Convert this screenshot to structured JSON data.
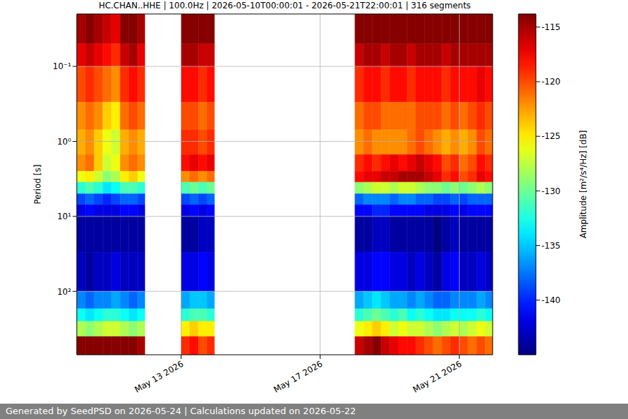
{
  "chart_data": {
    "type": "heatmap",
    "title": "HC.CHAN..HHE | 100.0Hz | 2026-05-10T00:00:01 - 2026-05-21T22:00:01 | 316 segments",
    "y_label": "Period [s]",
    "log": "y",
    "grid": true,
    "footer": "Generated by SeedPSD on 2026-05-24 | Calculations updated on 2026-05-22",
    "xlim": [
      "2026-05-10T00:00:00Z",
      "2026-05-21T23:00:00Z"
    ],
    "xticks": [
      {
        "value": "2026-05-13T00:00:00Z",
        "label": "May 13 2026"
      },
      {
        "value": "2026-05-17T00:00:00Z",
        "label": "May 17 2026"
      },
      {
        "value": "2026-05-21T00:00:00Z",
        "label": "May 21 2026"
      }
    ],
    "ylim": [
      0.02,
      700
    ],
    "yticks": [
      {
        "value": 0.1,
        "label": "10⁻¹"
      },
      {
        "value": 1,
        "label": "10⁰"
      },
      {
        "value": 10,
        "label": "10¹"
      },
      {
        "value": 100,
        "label": "10²"
      }
    ],
    "period_edges": [
      0.02,
      0.05,
      0.1,
      0.3,
      0.7,
      1.5,
      2.5,
      3.5,
      5,
      7,
      10,
      30,
      100,
      170,
      250,
      400,
      700
    ],
    "columns": [
      {
        "start": "2026-05-10T00:00:00Z",
        "end": "2026-05-10T06:00:00Z",
        "values": [
          -115,
          -117,
          -120,
          -122,
          -123,
          -122,
          -126,
          -132,
          -139,
          -142,
          -144,
          -143,
          -137,
          -133,
          -128,
          -114
        ]
      },
      {
        "start": "2026-05-10T06:00:00Z",
        "end": "2026-05-10T12:00:00Z",
        "values": [
          -114,
          -116,
          -119,
          -121,
          -122,
          -121,
          -125,
          -131,
          -138,
          -141,
          -144,
          -144,
          -138,
          -134,
          -129,
          -114
        ]
      },
      {
        "start": "2026-05-10T12:00:00Z",
        "end": "2026-05-10T18:00:00Z",
        "values": [
          -115,
          -117,
          -120,
          -122,
          -124,
          -124,
          -127,
          -132,
          -139,
          -142,
          -144,
          -143,
          -137,
          -133,
          -128,
          -114
        ]
      },
      {
        "start": "2026-05-10T18:00:00Z",
        "end": "2026-05-11T00:00:00Z",
        "values": [
          -116,
          -118,
          -121,
          -124,
          -126,
          -127,
          -129,
          -134,
          -140,
          -142,
          -144,
          -143,
          -137,
          -132,
          -127,
          -114
        ]
      },
      {
        "start": "2026-05-11T00:00:00Z",
        "end": "2026-05-11T06:00:00Z",
        "values": [
          -117,
          -119,
          -122,
          -125,
          -127,
          -126,
          -128,
          -133,
          -139,
          -142,
          -144,
          -142,
          -136,
          -132,
          -127,
          -114
        ]
      },
      {
        "start": "2026-05-11T06:00:00Z",
        "end": "2026-05-11T12:00:00Z",
        "values": [
          -114,
          -116,
          -119,
          -121,
          -123,
          -122,
          -125,
          -131,
          -138,
          -141,
          -144,
          -143,
          -137,
          -133,
          -128,
          -114
        ]
      },
      {
        "start": "2026-05-11T12:00:00Z",
        "end": "2026-05-11T18:00:00Z",
        "values": [
          -114,
          -115,
          -118,
          -120,
          -122,
          -121,
          -124,
          -131,
          -138,
          -141,
          -144,
          -143,
          -138,
          -134,
          -129,
          -114
        ]
      },
      {
        "start": "2026-05-11T18:00:00Z",
        "end": "2026-05-11T23:00:00Z",
        "values": [
          -115,
          -117,
          -119,
          -121,
          -123,
          -122,
          -126,
          -132,
          -139,
          -142,
          -144,
          -143,
          -137,
          -133,
          -128,
          -115
        ]
      },
      {
        "start": "2026-05-13T00:00:00Z",
        "end": "2026-05-13T06:00:00Z",
        "values": [
          -114,
          -115,
          -118,
          -120,
          -119,
          -118,
          -122,
          -131,
          -139,
          -142,
          -144,
          -142,
          -136,
          -132,
          -125,
          -119
        ]
      },
      {
        "start": "2026-05-13T06:00:00Z",
        "end": "2026-05-13T12:00:00Z",
        "values": [
          -114,
          -115,
          -118,
          -120,
          -119,
          -117,
          -121,
          -130,
          -138,
          -141,
          -144,
          -142,
          -135,
          -131,
          -124,
          -118
        ]
      },
      {
        "start": "2026-05-13T12:00:00Z",
        "end": "2026-05-13T18:00:00Z",
        "values": [
          -114,
          -116,
          -119,
          -121,
          -120,
          -118,
          -122,
          -131,
          -139,
          -142,
          -143,
          -141,
          -135,
          -131,
          -125,
          -120
        ]
      },
      {
        "start": "2026-05-13T18:00:00Z",
        "end": "2026-05-13T23:00:00Z",
        "values": [
          -114,
          -116,
          -118,
          -120,
          -119,
          -117,
          -121,
          -130,
          -138,
          -141,
          -143,
          -142,
          -136,
          -132,
          -125,
          -119
        ]
      },
      {
        "start": "2026-05-18T00:00:00Z",
        "end": "2026-05-18T06:00:00Z",
        "values": [
          -114,
          -116,
          -119,
          -121,
          -122,
          -119,
          -118,
          -129,
          -138,
          -141,
          -144,
          -142,
          -136,
          -132,
          -126,
          -116
        ]
      },
      {
        "start": "2026-05-18T06:00:00Z",
        "end": "2026-05-18T12:00:00Z",
        "values": [
          -114,
          -115,
          -118,
          -120,
          -121,
          -118,
          -117,
          -128,
          -137,
          -141,
          -144,
          -142,
          -135,
          -131,
          -125,
          -115
        ]
      },
      {
        "start": "2026-05-18T12:00:00Z",
        "end": "2026-05-18T18:00:00Z",
        "values": [
          -114,
          -115,
          -118,
          -120,
          -122,
          -119,
          -117,
          -127,
          -137,
          -140,
          -143,
          -141,
          -134,
          -130,
          -124,
          -114
        ]
      },
      {
        "start": "2026-05-18T18:00:00Z",
        "end": "2026-05-19T00:00:00Z",
        "values": [
          -114,
          -116,
          -119,
          -121,
          -122,
          -118,
          -116,
          -127,
          -137,
          -140,
          -143,
          -141,
          -135,
          -131,
          -125,
          -116
        ]
      },
      {
        "start": "2026-05-19T00:00:00Z",
        "end": "2026-05-19T06:00:00Z",
        "values": [
          -114,
          -115,
          -118,
          -121,
          -122,
          -117,
          -116,
          -128,
          -138,
          -141,
          -144,
          -142,
          -136,
          -132,
          -127,
          -117
        ]
      },
      {
        "start": "2026-05-19T06:00:00Z",
        "end": "2026-05-19T12:00:00Z",
        "values": [
          -114,
          -115,
          -118,
          -121,
          -122,
          -118,
          -115,
          -127,
          -137,
          -141,
          -144,
          -142,
          -136,
          -131,
          -126,
          -118
        ]
      },
      {
        "start": "2026-05-19T12:00:00Z",
        "end": "2026-05-19T18:00:00Z",
        "values": [
          -114,
          -116,
          -119,
          -121,
          -121,
          -117,
          -115,
          -127,
          -137,
          -141,
          -144,
          -143,
          -137,
          -133,
          -127,
          -118
        ]
      },
      {
        "start": "2026-05-19T18:00:00Z",
        "end": "2026-05-20T00:00:00Z",
        "values": [
          -114,
          -115,
          -118,
          -120,
          -120,
          -116,
          -115,
          -128,
          -138,
          -141,
          -144,
          -142,
          -136,
          -132,
          -127,
          -119
        ]
      },
      {
        "start": "2026-05-20T00:00:00Z",
        "end": "2026-05-20T06:00:00Z",
        "values": [
          -114,
          -115,
          -118,
          -120,
          -121,
          -117,
          -116,
          -129,
          -138,
          -142,
          -144,
          -143,
          -137,
          -133,
          -128,
          -120
        ]
      },
      {
        "start": "2026-05-20T06:00:00Z",
        "end": "2026-05-20T12:00:00Z",
        "values": [
          -114,
          -115,
          -118,
          -120,
          -122,
          -118,
          -117,
          -129,
          -139,
          -142,
          -145,
          -144,
          -138,
          -134,
          -129,
          -121
        ]
      },
      {
        "start": "2026-05-20T12:00:00Z",
        "end": "2026-05-20T18:00:00Z",
        "values": [
          -114,
          -116,
          -119,
          -121,
          -123,
          -120,
          -119,
          -130,
          -139,
          -142,
          -144,
          -142,
          -138,
          -134,
          -128,
          -120
        ]
      },
      {
        "start": "2026-05-20T18:00:00Z",
        "end": "2026-05-21T00:00:00Z",
        "values": [
          -114,
          -115,
          -118,
          -120,
          -122,
          -119,
          -118,
          -129,
          -138,
          -141,
          -143,
          -141,
          -137,
          -133,
          -127,
          -119
        ]
      },
      {
        "start": "2026-05-21T00:00:00Z",
        "end": "2026-05-21T06:00:00Z",
        "values": [
          -114,
          -115,
          -118,
          -121,
          -123,
          -121,
          -120,
          -130,
          -139,
          -142,
          -144,
          -143,
          -137,
          -133,
          -128,
          -120
        ]
      },
      {
        "start": "2026-05-21T06:00:00Z",
        "end": "2026-05-21T12:00:00Z",
        "values": [
          -114,
          -115,
          -118,
          -120,
          -122,
          -120,
          -119,
          -129,
          -138,
          -141,
          -144,
          -143,
          -137,
          -133,
          -127,
          -121
        ]
      },
      {
        "start": "2026-05-21T12:00:00Z",
        "end": "2026-05-21T18:00:00Z",
        "values": [
          -114,
          -115,
          -117,
          -119,
          -120,
          -118,
          -117,
          -128,
          -138,
          -141,
          -144,
          -142,
          -136,
          -132,
          -126,
          -120
        ]
      },
      {
        "start": "2026-05-21T18:00:00Z",
        "end": "2026-05-21T23:00:00Z",
        "values": [
          -114,
          -115,
          -118,
          -120,
          -121,
          -119,
          -118,
          -129,
          -138,
          -141,
          -144,
          -143,
          -137,
          -133,
          -127,
          -121
        ]
      }
    ],
    "colorbar": {
      "label": "Amplitude [m²/s⁴/Hz] [dB]",
      "clim": [
        -145,
        -113.8
      ],
      "ticks": [
        -140,
        -135,
        -130,
        -125,
        -120,
        -115
      ]
    }
  }
}
